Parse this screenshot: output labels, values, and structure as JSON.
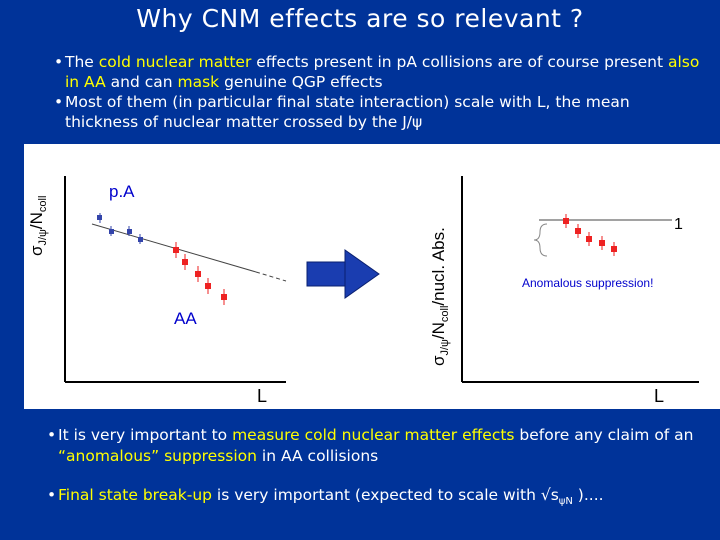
{
  "title": "Why CNM effects are so relevant ?",
  "bullets_top": [
    {
      "marker": "•",
      "parts": [
        {
          "t": "The ",
          "hl": false
        },
        {
          "t": "cold nuclear matter",
          "hl": true
        },
        {
          "t": " effects present in pA collisions are of course present ",
          "hl": false
        },
        {
          "t": "also in AA",
          "hl": true
        },
        {
          "t": " and can ",
          "hl": false
        },
        {
          "t": "mask",
          "hl": true
        },
        {
          "t": " genuine QGP effects",
          "hl": false
        }
      ]
    },
    {
      "marker": "•",
      "parts": [
        {
          "t": "Most of them (in particular final state interaction) scale with L, the mean thickness of nuclear matter crossed by the J/ψ",
          "hl": false
        }
      ]
    }
  ],
  "left_plot": {
    "ylabel_main": "σ",
    "ylabel_sub1": "J/ψ",
    "ylabel_mid": "/N",
    "ylabel_sub2": "coll",
    "xlabel": "L",
    "label_pA": "p.A",
    "label_AA": "AA",
    "colors": {
      "pA": "#3344aa",
      "AA": "#ee2222",
      "fit": "#444444",
      "axis": "#000000"
    }
  },
  "right_plot": {
    "ylabel_main": "σ",
    "ylabel_sub1": "J/ψ",
    "ylabel_mid": "/N",
    "ylabel_sub2": "coll",
    "ylabel_tail": "/nucl. Abs.",
    "xlabel": "L",
    "label_one": "1",
    "annotation": "Anomalous suppression!",
    "colors": {
      "points": "#ee2222",
      "annotation": "#0000cc",
      "line": "#444444"
    }
  },
  "arrow": {
    "color": "#1a3db0",
    "icon": "right-arrow-icon"
  },
  "bullets_bottom": [
    {
      "marker": "•",
      "parts": [
        {
          "t": "It is very important to ",
          "hl": false
        },
        {
          "t": "measure cold nuclear matter effects",
          "hl": true
        },
        {
          "t": " before any claim of an ",
          "hl": false
        },
        {
          "t": "“anomalous” suppression",
          "hl": true
        },
        {
          "t": " in AA collisions",
          "hl": false
        }
      ]
    },
    {
      "marker": "•",
      "parts": [
        {
          "t": "Final state break-up",
          "hl": true
        },
        {
          "t": " is very important (expected to scale with √s",
          "hl": false
        },
        {
          "t": "ψN",
          "hl": false,
          "sub": true
        },
        {
          "t": " )....",
          "hl": false
        }
      ]
    }
  ]
}
